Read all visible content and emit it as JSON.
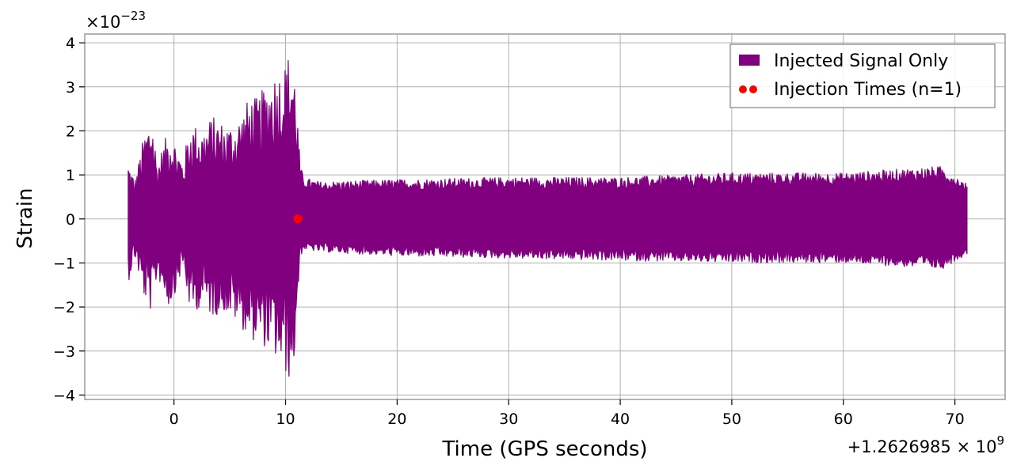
{
  "chart_data": {
    "type": "line",
    "title": "",
    "xlabel": "Time (GPS seconds)",
    "ylabel": "Strain",
    "x_offset_label": "+1.2626985 × 10",
    "x_offset_exponent": "9",
    "y_multiplier_label": "×10",
    "y_multiplier_exponent": "−23",
    "xlim": [
      -8,
      74.5
    ],
    "ylim": [
      -4.1,
      4.2
    ],
    "x_ticks": [
      0,
      10,
      20,
      30,
      40,
      50,
      60,
      70
    ],
    "y_ticks": [
      -4,
      -3,
      -2,
      -1,
      0,
      1,
      2,
      3,
      4
    ],
    "x_tick_labels": [
      "0",
      "10",
      "20",
      "30",
      "40",
      "50",
      "60",
      "70"
    ],
    "y_tick_labels": [
      "−4",
      "−3",
      "−2",
      "−1",
      "0",
      "1",
      "2",
      "3",
      "4"
    ],
    "grid": true,
    "legend": {
      "placement": "top-right",
      "entries": [
        "Injected Signal Only",
        "Injection Times (n=1)"
      ]
    },
    "series": [
      {
        "name": "Injected Signal Only",
        "kind": "line",
        "color": "#800080",
        "x_range": [
          -4.1,
          71.1
        ],
        "envelope": {
          "x": [
            -4.1,
            -3.5,
            -2.7,
            -2,
            -1.5,
            -0.4,
            0.8,
            1.5,
            2.6,
            3.4,
            4.4,
            5.3,
            6,
            6.8,
            7.5,
            8.3,
            9,
            9.8,
            10.3,
            10.6,
            10.9,
            11.3,
            11.6,
            13,
            20,
            30,
            40,
            50,
            60,
            68.8,
            71.1
          ],
          "upper": [
            1.35,
            0.9,
            1.9,
            2.45,
            1.3,
            2.1,
            1.35,
            2.2,
            2.05,
            2.35,
            2.2,
            2.15,
            2.4,
            2.8,
            2.75,
            3.1,
            3.35,
            3.45,
            3.8,
            3.75,
            3.25,
            1.3,
            0.95,
            0.85,
            0.9,
            0.95,
            0.95,
            1.05,
            1.05,
            1.2,
            0.8
          ],
          "lower": [
            -1.45,
            -0.9,
            -1.8,
            -2.15,
            -1.3,
            -2.05,
            -1.15,
            -2.2,
            -1.95,
            -2.25,
            -2.1,
            -2.3,
            -2.45,
            -2.75,
            -2.8,
            -2.95,
            -3.15,
            -3.5,
            -3.65,
            -3.7,
            -2.9,
            -0.9,
            -0.7,
            -0.75,
            -0.85,
            -0.9,
            -0.95,
            -1.0,
            -1.0,
            -1.15,
            -0.8
          ]
        }
      },
      {
        "name": "Injection Times (n=1)",
        "kind": "scatter",
        "color": "#ff0000",
        "x": [
          11.1
        ],
        "y": [
          0
        ]
      }
    ]
  }
}
